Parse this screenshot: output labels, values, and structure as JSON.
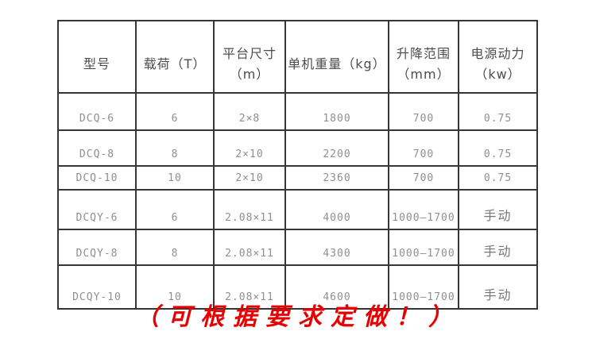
{
  "page": {
    "background_color": "#ffffff"
  },
  "spec_table": {
    "border_color": "#363636",
    "header_text_color": "#4c4c4c",
    "body_text_color": "#8f8f8f",
    "headers": {
      "model": "型号",
      "load": "载荷（T）",
      "platform": "平台尺寸\n（m）",
      "weight": "单机重量（kg）",
      "range": "升降范围\n（mm）",
      "power": "电源动力\n（kw）"
    },
    "rows": [
      {
        "model": "DCQ-6",
        "load_t": "6",
        "platform_m": "2×8",
        "unit_weight_kg": "1800",
        "lift_range_mm": "700",
        "power_kw": "0.75"
      },
      {
        "model": "DCQ-8",
        "load_t": "8",
        "platform_m": "2×10",
        "unit_weight_kg": "2200",
        "lift_range_mm": "700",
        "power_kw": "0.75"
      },
      {
        "model": "DCQ-10",
        "load_t": "10",
        "platform_m": "2×10",
        "unit_weight_kg": "2360",
        "lift_range_mm": "700",
        "power_kw": "0.75"
      },
      {
        "model": "DCQY-6",
        "load_t": "6",
        "platform_m": "2.08×11",
        "unit_weight_kg": "4000",
        "lift_range_mm": "1000—1700",
        "power_kw": "手动"
      },
      {
        "model": "DCQY-8",
        "load_t": "8",
        "platform_m": "2.08×11",
        "unit_weight_kg": "4300",
        "lift_range_mm": "1000—1700",
        "power_kw": "手动"
      },
      {
        "model": "DCQY-10",
        "load_t": "10",
        "platform_m": "2.08×11",
        "unit_weight_kg": "4600",
        "lift_range_mm": "1000—1700",
        "power_kw": "手动"
      }
    ]
  },
  "footer": {
    "note": "（可根据要求定做！）",
    "color": "#e60000"
  }
}
